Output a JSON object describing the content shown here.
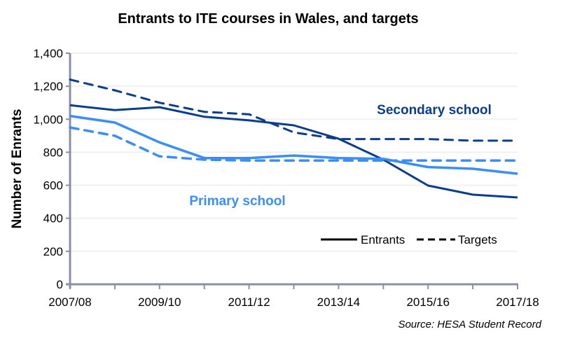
{
  "chart_data": {
    "type": "line",
    "title": "Entrants to ITE courses in Wales, and targets",
    "xlabel": "",
    "ylabel": "Number of Enrants",
    "x": [
      "2007/08",
      "2008/09",
      "2009/10",
      "2010/11",
      "2011/12",
      "2012/13",
      "2013/14",
      "2014/15",
      "2015/16",
      "2016/17",
      "2017/18"
    ],
    "x_tick_labels": [
      "2007/08",
      "2009/10",
      "2011/12",
      "2013/14",
      "2015/16",
      "2017/18"
    ],
    "ylim": [
      0,
      1400
    ],
    "y_ticks": [
      0,
      200,
      400,
      600,
      800,
      1000,
      1200,
      1400
    ],
    "y_tick_labels": [
      "0",
      "200",
      "400",
      "600",
      "800",
      "1,000",
      "1,200",
      "1,400"
    ],
    "grid": true,
    "series": [
      {
        "name": "Secondary school entrants",
        "group": "Secondary school",
        "style": "solid",
        "color": "#0b3d8c",
        "values": [
          1085,
          1055,
          1073,
          1015,
          993,
          963,
          882,
          755,
          598,
          543,
          526
        ]
      },
      {
        "name": "Secondary school targets",
        "group": "Secondary school",
        "style": "dashed",
        "color": "#0b3d8c",
        "values": [
          1240,
          1175,
          1100,
          1045,
          1030,
          920,
          880,
          880,
          880,
          870,
          870
        ]
      },
      {
        "name": "Primary school entrants",
        "group": "Primary school",
        "style": "solid",
        "color": "#3a8ef6",
        "values": [
          1020,
          980,
          860,
          765,
          765,
          780,
          765,
          760,
          710,
          700,
          670
        ]
      },
      {
        "name": "Primary school targets",
        "group": "Primary school",
        "style": "dashed",
        "color": "#3a8ef6",
        "values": [
          950,
          900,
          775,
          755,
          750,
          750,
          750,
          750,
          750,
          750,
          750
        ]
      }
    ],
    "annotations": [
      {
        "text": "Secondary school",
        "color": "#0b3d8c"
      },
      {
        "text": "Primary school",
        "color": "#3a8ef6"
      }
    ],
    "legend": {
      "placement": "bottom-right",
      "entries": [
        {
          "label": "Entrants",
          "style": "solid"
        },
        {
          "label": "Targets",
          "style": "dashed"
        }
      ]
    },
    "source": "Source: HESA Student Record"
  },
  "colors": {
    "axis": "#8a8fa8",
    "grid": "#f0f0f0",
    "secondary": "#0b3d8c",
    "primary": "#3a8ef6"
  }
}
